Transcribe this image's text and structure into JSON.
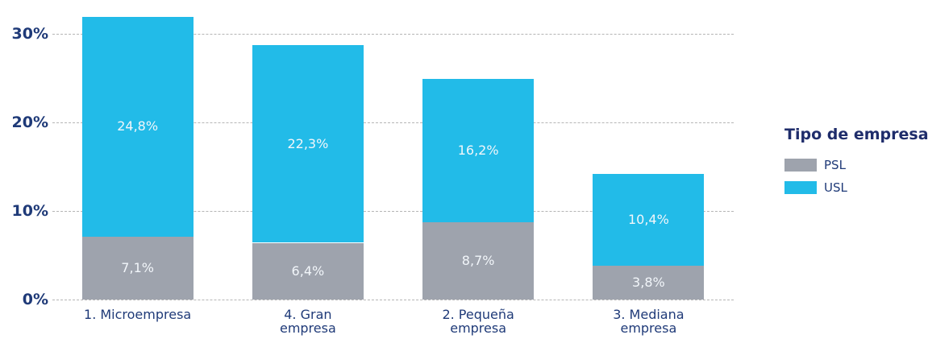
{
  "chart_data": {
    "type": "stacked_bar",
    "categories": [
      "1. Microempresa",
      "4. Gran\nempresa",
      "2. Pequeña\nempresa",
      "3. Mediana\nempresa"
    ],
    "series": [
      {
        "name": "PSL",
        "color": "#9ea3ad",
        "values": [
          7.1,
          6.4,
          8.7,
          3.8
        ],
        "value_labels": [
          "7,1%",
          "6,4%",
          "8,7%",
          "3,8%"
        ]
      },
      {
        "name": "USL",
        "color": "#22bbe8",
        "values": [
          24.8,
          22.3,
          16.2,
          10.4
        ],
        "value_labels": [
          "24,8%",
          "22,3%",
          "16,2%",
          "10,4%"
        ]
      }
    ],
    "ylim": [
      0,
      32.5
    ],
    "yticks": [
      {
        "value": 0,
        "label": "0%"
      },
      {
        "value": 10,
        "label": "10%"
      },
      {
        "value": 20,
        "label": "20%"
      },
      {
        "value": 30,
        "label": "30%"
      }
    ],
    "grid": true,
    "legend": {
      "title": "Tipo de empresa",
      "position": "right"
    }
  }
}
